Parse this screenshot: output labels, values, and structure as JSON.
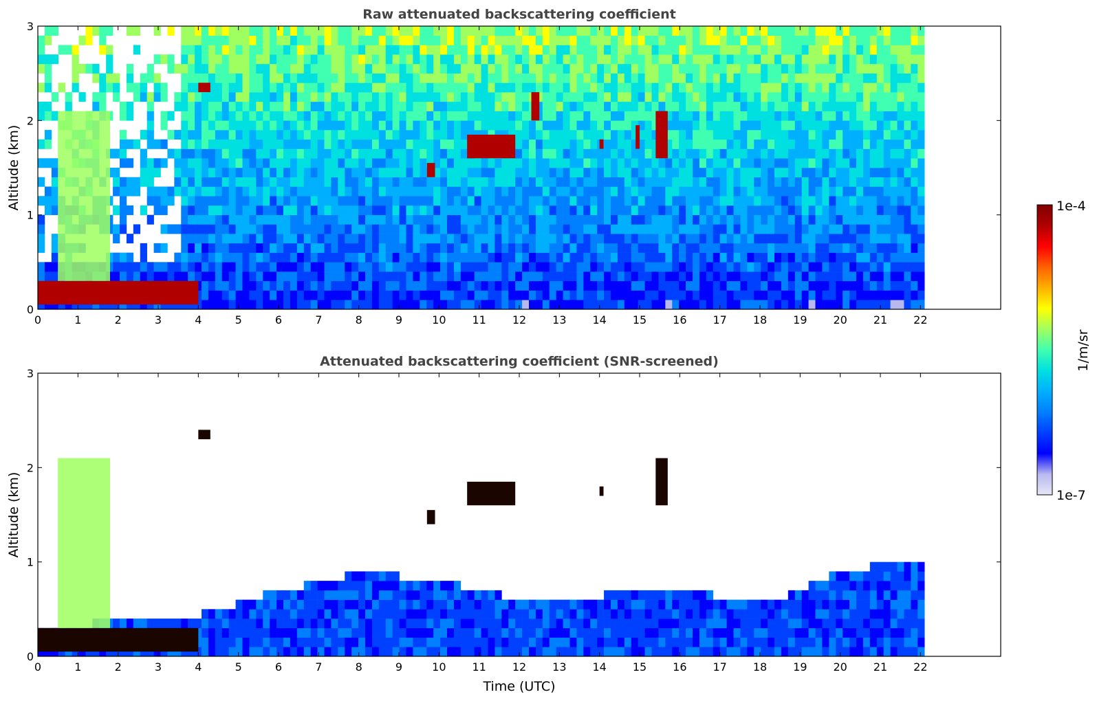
{
  "chart_data": [
    {
      "type": "heatmap",
      "title": "Raw attenuated backscattering coefficient",
      "xlabel": "",
      "ylabel": "Altitude (km)",
      "xlim": [
        0,
        24
      ],
      "ylim": [
        0,
        3
      ],
      "data_end_x": 22.1,
      "x_ticks": [
        "0",
        "1",
        "2",
        "3",
        "4",
        "5",
        "6",
        "7",
        "8",
        "9",
        "10",
        "11",
        "12",
        "13",
        "14",
        "15",
        "16",
        "17",
        "18",
        "19",
        "20",
        "21",
        "22"
      ],
      "y_ticks": [
        "0",
        "1",
        "2",
        "3"
      ],
      "grid": false,
      "features": [
        {
          "x": [
            0.0,
            4.0
          ],
          "y": [
            0.05,
            0.3
          ],
          "level": "high"
        },
        {
          "x": [
            0.5,
            1.8
          ],
          "y": [
            0.3,
            2.1
          ],
          "level": "mid"
        },
        {
          "x": [
            4.0,
            4.3
          ],
          "y": [
            2.3,
            2.4
          ],
          "level": "high"
        },
        {
          "x": [
            9.7,
            9.9
          ],
          "y": [
            1.4,
            1.55
          ],
          "level": "high"
        },
        {
          "x": [
            10.7,
            11.9
          ],
          "y": [
            1.6,
            1.85
          ],
          "level": "high"
        },
        {
          "x": [
            12.3,
            12.5
          ],
          "y": [
            2.0,
            2.3
          ],
          "level": "high"
        },
        {
          "x": [
            14.0,
            14.1
          ],
          "y": [
            1.7,
            1.8
          ],
          "level": "high"
        },
        {
          "x": [
            14.9,
            15.0
          ],
          "y": [
            1.7,
            1.95
          ],
          "level": "high"
        },
        {
          "x": [
            15.4,
            15.7
          ],
          "y": [
            1.6,
            2.1
          ],
          "level": "high"
        }
      ]
    },
    {
      "type": "heatmap",
      "title": "Attenuated backscattering coefficient (SNR-screened)",
      "xlabel": "Time (UTC)",
      "ylabel": "Altitude (km)",
      "xlim": [
        0,
        24
      ],
      "ylim": [
        0,
        3
      ],
      "data_end_x": 22.1,
      "x_ticks": [
        "0",
        "1",
        "2",
        "3",
        "4",
        "5",
        "6",
        "7",
        "8",
        "9",
        "10",
        "11",
        "12",
        "13",
        "14",
        "15",
        "16",
        "17",
        "18",
        "19",
        "20",
        "21",
        "22"
      ],
      "y_ticks": [
        "0",
        "1",
        "2",
        "3"
      ],
      "grid": false,
      "features": [
        {
          "x": [
            0.0,
            4.0
          ],
          "y": [
            0.05,
            0.3
          ],
          "level": "very-high"
        },
        {
          "x": [
            0.5,
            1.8
          ],
          "y": [
            0.3,
            2.1
          ],
          "level": "mid"
        },
        {
          "x": [
            4.0,
            4.3
          ],
          "y": [
            2.3,
            2.4
          ],
          "level": "very-high"
        },
        {
          "x": [
            9.7,
            9.9
          ],
          "y": [
            1.4,
            1.55
          ],
          "level": "very-high"
        },
        {
          "x": [
            10.7,
            11.9
          ],
          "y": [
            1.6,
            1.85
          ],
          "level": "very-high"
        },
        {
          "x": [
            14.0,
            14.1
          ],
          "y": [
            1.7,
            1.8
          ],
          "level": "very-high"
        },
        {
          "x": [
            15.4,
            15.7
          ],
          "y": [
            1.6,
            2.1
          ],
          "level": "very-high"
        }
      ],
      "boundary_layer_top": [
        [
          0,
          0.3
        ],
        [
          4,
          0.45
        ],
        [
          6,
          0.7
        ],
        [
          8,
          0.9
        ],
        [
          10,
          0.8
        ],
        [
          12,
          0.6
        ],
        [
          14,
          0.65
        ],
        [
          16,
          0.7
        ],
        [
          18,
          0.55
        ],
        [
          20,
          0.9
        ],
        [
          22.1,
          1.05
        ]
      ]
    }
  ],
  "colorbar": {
    "label": "1/m/sr",
    "max_label": "1e-4",
    "min_label": "1e-7",
    "scale": "log",
    "range": [
      1e-07,
      0.0001
    ],
    "colors": [
      "#e6e6f5",
      "#b8b8f0",
      "#0000ff",
      "#0040ff",
      "#0080ff",
      "#00b0ff",
      "#00e0e0",
      "#40ffb0",
      "#a0ff60",
      "#ffff00",
      "#ffb000",
      "#ff6000",
      "#ff0000",
      "#b00000",
      "#800000"
    ]
  }
}
